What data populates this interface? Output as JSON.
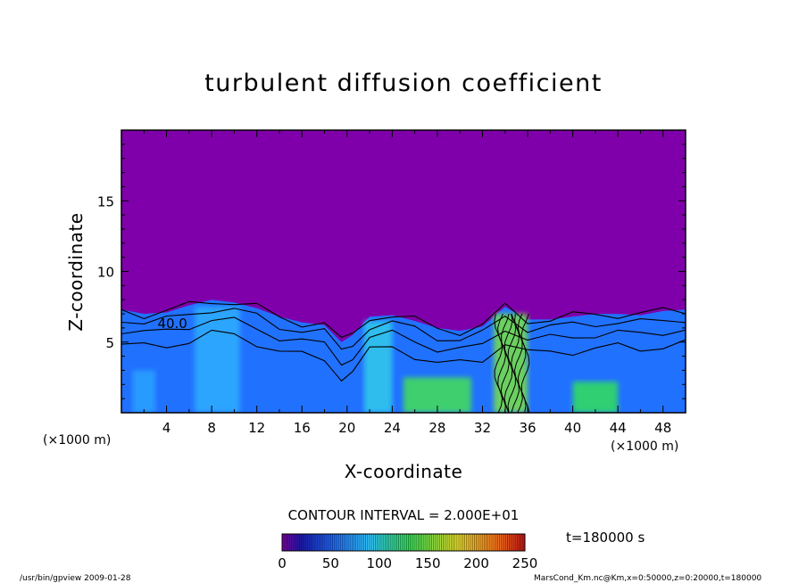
{
  "chart_data": {
    "type": "heatmap",
    "title": "turbulent diffusion coefficient",
    "xlabel": "X-coordinate",
    "ylabel": "Z-coordinate",
    "x_unit": "(×1000 m)",
    "y_unit": "(×1000 m)",
    "xlim": [
      0,
      50
    ],
    "ylim": [
      0,
      20
    ],
    "x_ticks": [
      "4",
      "8",
      "12",
      "16",
      "20",
      "24",
      "28",
      "32",
      "36",
      "40",
      "44",
      "48"
    ],
    "y_ticks": [
      "5",
      "10",
      "15"
    ],
    "background_value": 0,
    "contour_interval_label": "CONTOUR INTERVAL = 2.000E+01",
    "contour_label": "40.0",
    "time_label": "t=180000 s",
    "colorbar": {
      "ticks": [
        "0",
        "50",
        "100",
        "150",
        "200",
        "250"
      ],
      "range": [
        0,
        250
      ],
      "stops": [
        {
          "v": 0,
          "c": "#7f00aa"
        },
        {
          "v": 20,
          "c": "#1c1caa"
        },
        {
          "v": 50,
          "c": "#1e64ff"
        },
        {
          "v": 90,
          "c": "#32c8ff"
        },
        {
          "v": 130,
          "c": "#32e05a"
        },
        {
          "v": 180,
          "c": "#e6e02a"
        },
        {
          "v": 220,
          "c": "#ff7a1e"
        },
        {
          "v": 250,
          "c": "#c81414"
        }
      ]
    },
    "boundary_layer_top": [
      [
        0,
        7.3
      ],
      [
        2,
        7.0
      ],
      [
        4,
        7.1
      ],
      [
        6,
        7.6
      ],
      [
        8,
        8.0
      ],
      [
        10,
        7.8
      ],
      [
        12,
        7.4
      ],
      [
        14,
        6.8
      ],
      [
        16,
        6.4
      ],
      [
        18,
        6.2
      ],
      [
        19.5,
        5.0
      ],
      [
        20.5,
        5.5
      ],
      [
        22,
        6.8
      ],
      [
        24,
        6.9
      ],
      [
        26,
        6.5
      ],
      [
        28,
        6.0
      ],
      [
        30,
        5.8
      ],
      [
        32,
        6.1
      ],
      [
        34,
        7.5
      ],
      [
        36,
        6.6
      ],
      [
        38,
        6.6
      ],
      [
        40,
        6.8
      ],
      [
        42,
        7.0
      ],
      [
        44,
        7.0
      ],
      [
        46,
        6.9
      ],
      [
        48,
        7.2
      ],
      [
        50,
        7.3
      ]
    ],
    "regions": [
      {
        "x": [
          0,
          50
        ],
        "z": [
          0,
          7
        ],
        "value": 55
      },
      {
        "x": [
          6.5,
          10.5
        ],
        "z": [
          0,
          7.5
        ],
        "value": 80
      },
      {
        "x": [
          21.5,
          24
        ],
        "z": [
          0,
          6.5
        ],
        "value": 95
      },
      {
        "x": [
          25,
          31
        ],
        "z": [
          0,
          2.5
        ],
        "value": 135
      },
      {
        "x": [
          33,
          36
        ],
        "z": [
          0,
          7
        ],
        "value": 150
      },
      {
        "x": [
          40,
          44
        ],
        "z": [
          0,
          2.2
        ],
        "value": 130
      },
      {
        "x": [
          1,
          3
        ],
        "z": [
          0,
          3
        ],
        "value": 75
      }
    ]
  },
  "footer": {
    "left": "/usr/bin/gpview  2009-01-28",
    "right": "MarsCond_Km.nc@Km,x=0:50000,z=0:20000,t=180000"
  }
}
